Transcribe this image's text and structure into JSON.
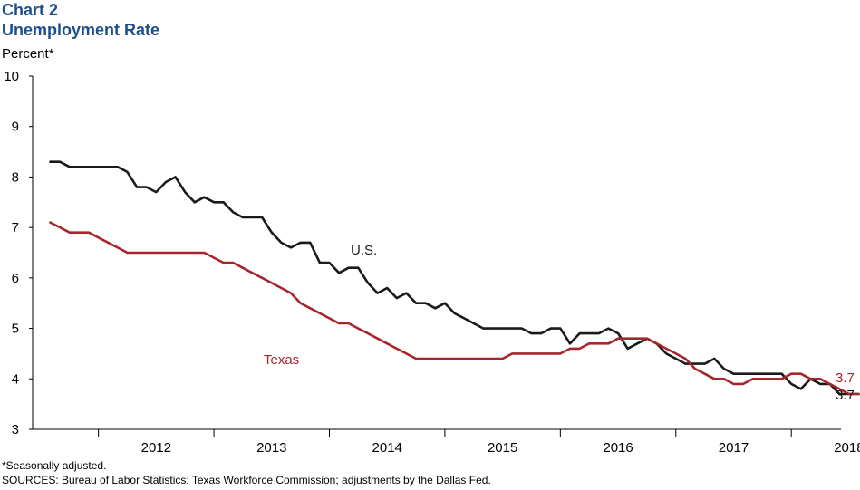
{
  "header": {
    "chart_number": "Chart 2",
    "title": "Unemployment Rate"
  },
  "footer": {
    "note": "*Seasonally adjusted.",
    "sources": "SOURCES: Bureau of Labor Statistics; Texas Workforce Commission; adjustments by the Dallas Fed."
  },
  "colors": {
    "us": "#1a1a1a",
    "texas": "#a6262c",
    "title": "#1f4e8c"
  },
  "chart_data": {
    "type": "line",
    "title": "Unemployment Rate",
    "ylabel": "Percent*",
    "xlabel": "",
    "ylim": [
      3,
      10
    ],
    "yticks": [
      "3",
      "4",
      "5",
      "6",
      "7",
      "8",
      "9",
      "10"
    ],
    "xcategories": [
      "2012",
      "2013",
      "2014",
      "2015",
      "2016",
      "2017",
      "2018"
    ],
    "grid": false,
    "x_start": "2011-08",
    "series": [
      {
        "name": "U.S.",
        "color": "#1a1a1a",
        "end_label": "3.7",
        "values": [
          8.3,
          8.3,
          8.2,
          8.2,
          8.2,
          8.2,
          8.2,
          8.2,
          8.1,
          7.8,
          7.8,
          7.7,
          7.9,
          8.0,
          7.7,
          7.5,
          7.6,
          7.5,
          7.5,
          7.3,
          7.2,
          7.2,
          7.2,
          6.9,
          6.7,
          6.6,
          6.7,
          6.7,
          6.3,
          6.3,
          6.1,
          6.2,
          6.2,
          5.9,
          5.7,
          5.8,
          5.6,
          5.7,
          5.5,
          5.5,
          5.4,
          5.5,
          5.3,
          5.2,
          5.1,
          5.0,
          5.0,
          5.0,
          5.0,
          5.0,
          4.9,
          4.9,
          5.0,
          5.0,
          4.7,
          4.9,
          4.9,
          4.9,
          5.0,
          4.9,
          4.6,
          4.7,
          4.8,
          4.7,
          4.5,
          4.4,
          4.3,
          4.3,
          4.3,
          4.4,
          4.2,
          4.1,
          4.1,
          4.1,
          4.1,
          4.1,
          4.1,
          3.9,
          3.8,
          4.0,
          3.9,
          3.9,
          3.7,
          3.7,
          3.7
        ]
      },
      {
        "name": "Texas",
        "color": "#a6262c",
        "end_label": "3.7",
        "values": [
          7.1,
          7.0,
          6.9,
          6.9,
          6.9,
          6.8,
          6.7,
          6.6,
          6.5,
          6.5,
          6.5,
          6.5,
          6.5,
          6.5,
          6.5,
          6.5,
          6.5,
          6.4,
          6.3,
          6.3,
          6.2,
          6.1,
          6.0,
          5.9,
          5.8,
          5.7,
          5.5,
          5.4,
          5.3,
          5.2,
          5.1,
          5.1,
          5.0,
          4.9,
          4.8,
          4.7,
          4.6,
          4.5,
          4.4,
          4.4,
          4.4,
          4.4,
          4.4,
          4.4,
          4.4,
          4.4,
          4.4,
          4.4,
          4.5,
          4.5,
          4.5,
          4.5,
          4.5,
          4.5,
          4.6,
          4.6,
          4.7,
          4.7,
          4.7,
          4.8,
          4.8,
          4.8,
          4.8,
          4.7,
          4.6,
          4.5,
          4.4,
          4.2,
          4.1,
          4.0,
          4.0,
          3.9,
          3.9,
          4.0,
          4.0,
          4.0,
          4.0,
          4.1,
          4.1,
          4.0,
          4.0,
          3.9,
          3.8,
          3.7,
          3.7
        ]
      }
    ]
  }
}
